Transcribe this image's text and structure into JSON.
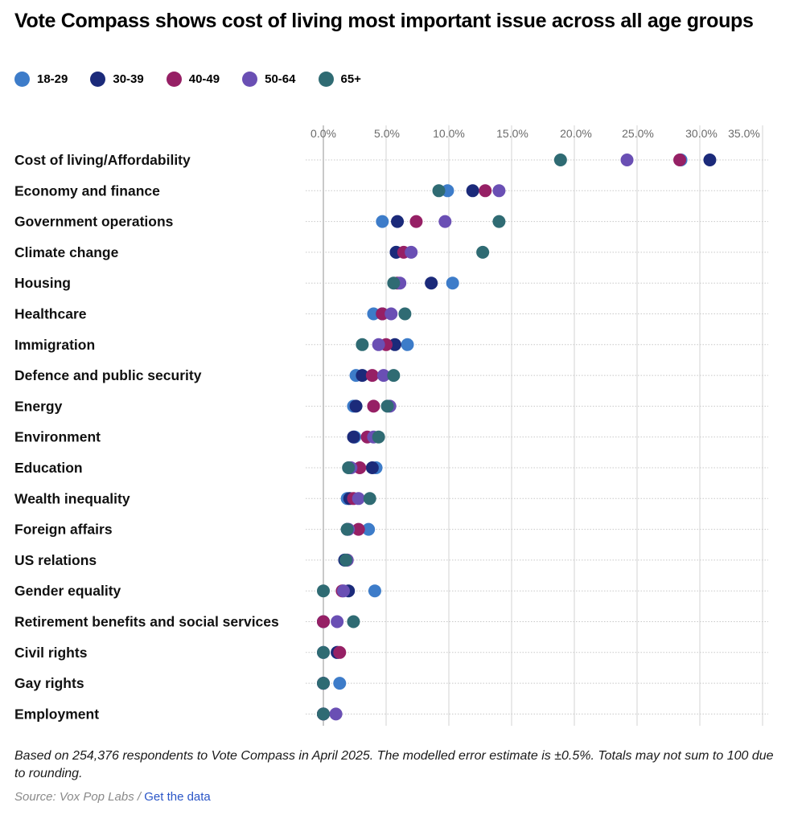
{
  "header": {
    "title": "Vote Compass shows cost of living most important issue across all age groups"
  },
  "legend": [
    {
      "label": "18-29",
      "color": "#3d7cc9"
    },
    {
      "label": "30-39",
      "color": "#1b2a7a"
    },
    {
      "label": "40-49",
      "color": "#962065"
    },
    {
      "label": "50-64",
      "color": "#6a4fb4"
    },
    {
      "label": "65+",
      "color": "#2f6b73"
    }
  ],
  "chart_data": {
    "type": "scatter",
    "subtype": "dot-plot",
    "title": "Vote Compass shows cost of living most important issue across all age groups",
    "xlabel": "",
    "ylabel": "",
    "xlim": [
      0,
      35
    ],
    "x_ticks": [
      "0.0%",
      "5.0%",
      "10.0%",
      "15.0%",
      "20.0%",
      "25.0%",
      "30.0%",
      "35.0%"
    ],
    "x_tick_values": [
      0,
      5,
      10,
      15,
      20,
      25,
      30,
      35
    ],
    "grid": true,
    "legend_position": "top-left",
    "categories": [
      "Cost of living/Affordability",
      "Economy and finance",
      "Government operations",
      "Climate change",
      "Housing",
      "Healthcare",
      "Immigration",
      "Defence and public security",
      "Energy",
      "Environment",
      "Education",
      "Wealth inequality",
      "Foreign affairs",
      "US relations",
      "Gender equality",
      "Retirement benefits and social services",
      "Civil rights",
      "Gay rights",
      "Employment"
    ],
    "series": [
      {
        "name": "18-29",
        "color": "#3d7cc9",
        "values": [
          28.5,
          9.9,
          4.7,
          5.8,
          10.3,
          4.0,
          6.7,
          2.6,
          2.4,
          2.5,
          4.2,
          1.9,
          3.6,
          1.7,
          4.1,
          0.0,
          1.1,
          1.3,
          0.0
        ]
      },
      {
        "name": "30-39",
        "color": "#1b2a7a",
        "values": [
          30.8,
          11.9,
          5.9,
          5.8,
          8.6,
          4.7,
          5.7,
          3.1,
          2.6,
          2.4,
          3.9,
          2.1,
          1.9,
          1.7,
          2.0,
          0.0,
          1.1,
          0.0,
          0.0
        ]
      },
      {
        "name": "40-49",
        "color": "#962065",
        "values": [
          28.4,
          12.9,
          7.4,
          6.4,
          5.9,
          4.7,
          5.0,
          3.9,
          4.0,
          3.5,
          2.9,
          2.4,
          2.8,
          1.9,
          1.5,
          0.0,
          1.3,
          0.0,
          0.0
        ]
      },
      {
        "name": "50-64",
        "color": "#6a4fb4",
        "values": [
          24.2,
          14.0,
          9.7,
          7.0,
          6.1,
          5.4,
          4.4,
          4.8,
          5.3,
          4.0,
          2.2,
          2.8,
          2.0,
          1.9,
          1.6,
          1.1,
          0.0,
          0.0,
          1.0
        ]
      },
      {
        "name": "65+",
        "color": "#2f6b73",
        "values": [
          18.9,
          9.2,
          14.0,
          12.7,
          5.6,
          6.5,
          3.1,
          5.6,
          5.1,
          4.4,
          2.0,
          3.7,
          1.9,
          1.8,
          0.0,
          2.4,
          0.0,
          0.0,
          0.0
        ]
      }
    ]
  },
  "footer": {
    "note": "Based on 254,376 respondents to Vote Compass in April 2025. The modelled error estimate is ±0.5%. Totals may not sum to 100 due to rounding.",
    "source_prefix": "Source: Vox Pop Labs / ",
    "link_label": "Get the data"
  }
}
